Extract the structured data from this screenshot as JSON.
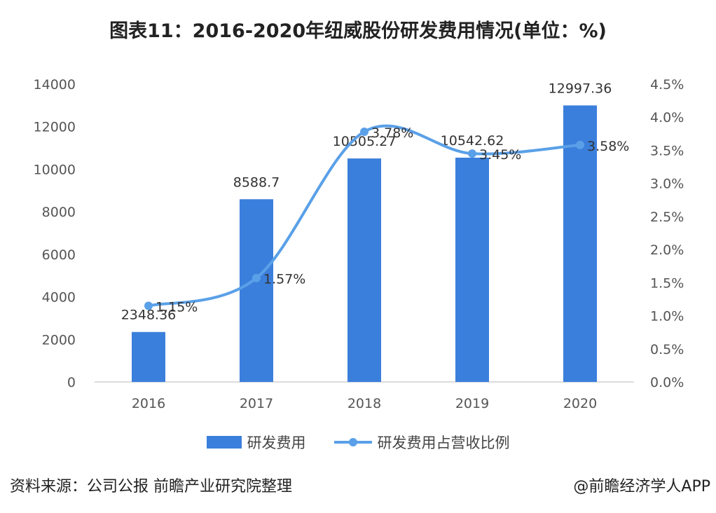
{
  "title": "图表11：2016-2020年纽威股份研发费用情况(单位：%)",
  "source": "资料来源：公司公报 前瞻产业研究院整理",
  "credit": "@前瞻经济学人APP",
  "chart_data": {
    "type": "bar+line",
    "categories": [
      "2016",
      "2017",
      "2018",
      "2019",
      "2020"
    ],
    "series": [
      {
        "name": "研发费用",
        "type": "bar",
        "axis": "left",
        "color": "#3b7fdc",
        "values": [
          2348.36,
          8588.7,
          10505.27,
          10542.62,
          12997.36
        ],
        "labels": [
          "2348.36",
          "8588.7",
          "10505.27",
          "10542.62",
          "12997.36"
        ]
      },
      {
        "name": "研发费用占营收比例",
        "type": "line",
        "axis": "right",
        "color": "#5aa0e8",
        "values": [
          1.15,
          1.57,
          3.78,
          3.45,
          3.58
        ],
        "labels": [
          "1.15%",
          "1.57%",
          "3.78%",
          "3.45%",
          "3.58%"
        ]
      }
    ],
    "left_axis": {
      "range": [
        0,
        14000
      ],
      "ticks": [
        "0",
        "2000",
        "4000",
        "6000",
        "8000",
        "10000",
        "12000",
        "14000"
      ]
    },
    "right_axis": {
      "range": [
        0,
        4.5
      ],
      "ticks": [
        "0.0%",
        "0.5%",
        "1.0%",
        "1.5%",
        "2.0%",
        "2.5%",
        "3.0%",
        "3.5%",
        "4.0%",
        "4.5%"
      ]
    },
    "grid": false,
    "legend_position": "bottom"
  }
}
